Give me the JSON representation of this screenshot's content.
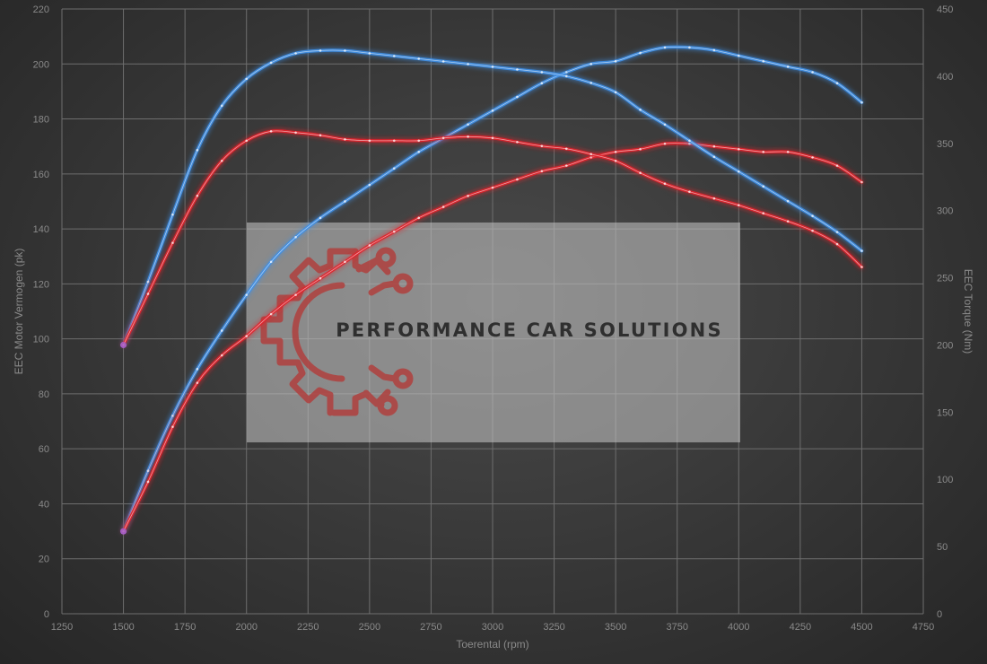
{
  "chart_data": {
    "type": "line",
    "xlabel": "Toerental (rpm)",
    "ylabel_left": "EEC Motor Vermogen (pk)",
    "ylabel_right": "EEC Torque (Nm)",
    "xlim": [
      1250,
      4750
    ],
    "ylim_left": [
      0,
      220
    ],
    "ylim_right": [
      0,
      450
    ],
    "x_ticks": [
      1250,
      1500,
      1750,
      2000,
      2250,
      2500,
      2750,
      3000,
      3250,
      3500,
      3750,
      4000,
      4250,
      4500,
      4750
    ],
    "y_ticks_left": [
      0,
      20,
      40,
      60,
      80,
      100,
      120,
      140,
      160,
      180,
      200,
      220
    ],
    "y_ticks_right": [
      0,
      50,
      100,
      150,
      200,
      250,
      300,
      350,
      400,
      450
    ],
    "grid": true,
    "colors": {
      "tuned": "#3f8fe6",
      "stock": "#e0222a",
      "start": "#a35fc8"
    },
    "series": [
      {
        "axis": "left",
        "color": "#3f8fe6",
        "x": [
          1500,
          1600,
          1700,
          1800,
          1900,
          2000,
          2100,
          2200,
          2300,
          2400,
          2500,
          2600,
          2700,
          2800,
          2900,
          3000,
          3100,
          3200,
          3300,
          3400,
          3500,
          3600,
          3700,
          3800,
          3900,
          4000,
          4100,
          4200,
          4300,
          4400,
          4500
        ],
        "values": [
          30,
          52,
          72,
          89,
          103,
          116,
          128,
          137,
          144,
          150,
          156,
          162,
          168,
          173,
          178,
          183,
          188,
          193,
          197,
          200,
          201,
          204,
          206,
          206,
          205,
          203,
          201,
          199,
          197,
          193,
          186
        ]
      },
      {
        "axis": "left",
        "color": "#e0222a",
        "x": [
          1500,
          1600,
          1700,
          1800,
          1900,
          2000,
          2100,
          2200,
          2300,
          2400,
          2500,
          2600,
          2700,
          2800,
          2900,
          3000,
          3100,
          3200,
          3300,
          3400,
          3500,
          3600,
          3700,
          3800,
          3900,
          4000,
          4100,
          4200,
          4300,
          4400,
          4500
        ],
        "values": [
          30,
          48,
          68,
          84,
          94,
          101,
          109,
          116,
          122,
          128,
          134,
          139,
          144,
          148,
          152,
          155,
          158,
          161,
          163,
          166,
          168,
          169,
          171,
          171,
          170,
          169,
          168,
          168,
          166,
          163,
          157
        ]
      },
      {
        "axis": "right",
        "color": "#3f8fe6",
        "x": [
          1500,
          1600,
          1700,
          1800,
          1900,
          2000,
          2100,
          2200,
          2300,
          2400,
          2500,
          2600,
          2700,
          2800,
          2900,
          3000,
          3100,
          3200,
          3300,
          3400,
          3500,
          3600,
          3700,
          3800,
          3900,
          4000,
          4100,
          4200,
          4300,
          4400,
          4500
        ],
        "values": [
          200,
          247,
          297,
          345,
          378,
          398,
          410,
          417,
          419,
          419,
          417,
          415,
          413,
          411,
          409,
          407,
          405,
          403,
          400,
          395,
          388,
          375,
          364,
          352,
          340,
          329,
          318,
          307,
          296,
          284,
          270
        ]
      },
      {
        "axis": "right",
        "color": "#e0222a",
        "x": [
          1500,
          1600,
          1700,
          1800,
          1900,
          2000,
          2100,
          2200,
          2300,
          2400,
          2500,
          2600,
          2700,
          2800,
          2900,
          3000,
          3100,
          3200,
          3300,
          3400,
          3500,
          3600,
          3700,
          3800,
          3900,
          4000,
          4100,
          4200,
          4300,
          4400,
          4500
        ],
        "values": [
          200,
          238,
          276,
          311,
          337,
          352,
          359,
          358,
          356,
          353,
          352,
          352,
          352,
          354,
          355,
          354,
          351,
          348,
          346,
          342,
          337,
          328,
          320,
          314,
          309,
          304,
          298,
          292,
          285,
          275,
          258
        ]
      }
    ]
  },
  "watermark": {
    "text": "PERFORMANCE CAR SOLUTIONS",
    "logo_icon": "gear-circuit-logo-icon"
  }
}
